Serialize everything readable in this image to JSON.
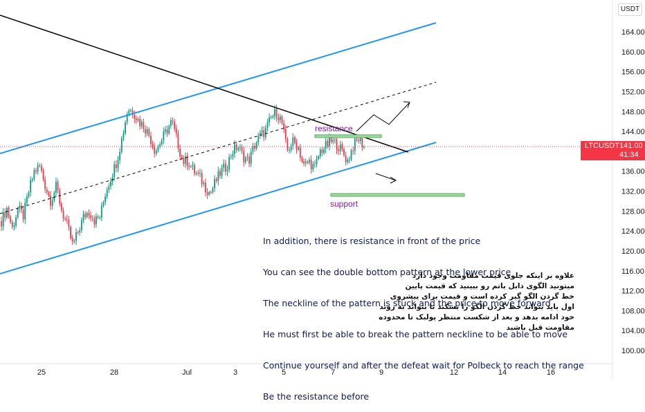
{
  "symbol": "LTCUSDT",
  "unit": "USDT",
  "last_price": "141.00",
  "countdown": "41:34",
  "colors": {
    "up": "#089981",
    "down": "#f23645",
    "channel": "#2196f3",
    "zone": "#81c784",
    "label": "#7b1fa2"
  },
  "labels": {
    "resistance": "resistance",
    "support": "support"
  },
  "note_en": [
    "In addition, there is resistance in front of the price",
    "You can see the double bottom pattern at the lower price",
    "The neckline of the pattern is stuck and the price to move forward",
    "He must first be able to break the pattern neckline to be able to move",
    "Continue yourself and after the defeat wait for Polbeck to reach the range",
    "Be the resistance before"
  ],
  "note_fa": [
    "علاوه بر اینکه جلوی قیمت مقاومت وجود دارد",
    "میتونید الگوی دابل باتم رو ببینید که قیمت پایین",
    "خط گردن الگو گیر کرده است و قیمت برای پیشروی",
    "اول باید بتواند خط گردن الگو را بشکند تا بتواند به روند",
    "خود ادامه بدهد و بعد از شکست منتظر پولبک تا محدوده",
    "مقاومت قبل باشید"
  ],
  "chart_data": {
    "type": "candlestick",
    "x_ticks": [
      "25",
      "28",
      "Jul",
      "3",
      "5",
      "7",
      "9",
      "12",
      "14",
      "16"
    ],
    "y_ticks": [
      "164.00",
      "160.00",
      "156.00",
      "152.00",
      "148.00",
      "144.00",
      "140.00",
      "136.00",
      "132.00",
      "128.00",
      "124.00",
      "120.00",
      "116.00",
      "112.00",
      "108.00",
      "104.00",
      "100.00"
    ],
    "ylim": [
      98,
      167
    ],
    "close_path": [
      126,
      128.5,
      124.5,
      128.5,
      127,
      132,
      136,
      137,
      133,
      130,
      133,
      128,
      125,
      121,
      124,
      127,
      128,
      126,
      127,
      132,
      135,
      138,
      143,
      148.5,
      148,
      146,
      145,
      143,
      140,
      142,
      144,
      146,
      142,
      138,
      138,
      136,
      135,
      133,
      131.5,
      134,
      136,
      137,
      140,
      141,
      139,
      138,
      141,
      143,
      144,
      146.5,
      148,
      146,
      140,
      142,
      141,
      137,
      138,
      136.5,
      140,
      141,
      142,
      141.5,
      140,
      138,
      141,
      142.5,
      141
    ],
    "resistance_zone": [
      143,
      143.4
    ],
    "support_zone": [
      131,
      131.5
    ],
    "resistance_level": 141.0
  }
}
